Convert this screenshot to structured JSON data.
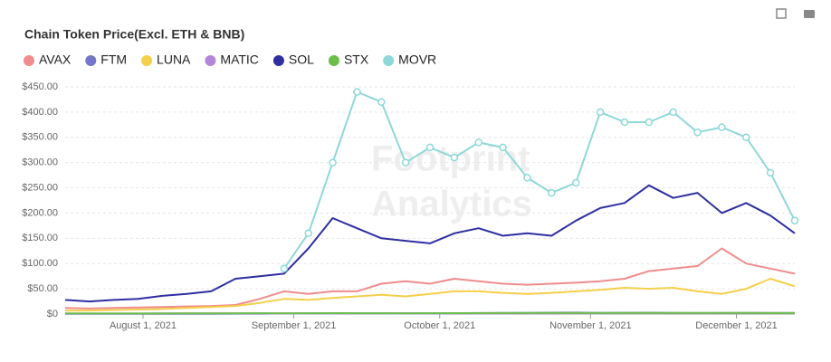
{
  "chart_data": {
    "type": "line",
    "title": "Chain Token Price(Excl. ETH & BNB)",
    "watermark": [
      "Footprint",
      "Analytics"
    ],
    "x": [
      "2021-07-16",
      "2021-07-21",
      "2021-07-26",
      "2021-07-31",
      "2021-08-05",
      "2021-08-10",
      "2021-08-15",
      "2021-08-20",
      "2021-08-25",
      "2021-08-30",
      "2021-09-04",
      "2021-09-09",
      "2021-09-14",
      "2021-09-19",
      "2021-09-24",
      "2021-09-29",
      "2021-10-04",
      "2021-10-09",
      "2021-10-14",
      "2021-10-19",
      "2021-10-24",
      "2021-10-29",
      "2021-11-03",
      "2021-11-08",
      "2021-11-13",
      "2021-11-18",
      "2021-11-23",
      "2021-11-28",
      "2021-12-03",
      "2021-12-08",
      "2021-12-13"
    ],
    "xlim": [
      "2021-07-16",
      "2021-12-13"
    ],
    "xticks": [
      {
        "value": "2021-08-01",
        "label": "August 1, 2021"
      },
      {
        "value": "2021-09-01",
        "label": "September 1, 2021"
      },
      {
        "value": "2021-10-01",
        "label": "October 1, 2021"
      },
      {
        "value": "2021-11-01",
        "label": "November 1, 2021"
      },
      {
        "value": "2021-12-01",
        "label": "December 1, 2021"
      }
    ],
    "ylim": [
      0,
      450
    ],
    "yticks": [
      {
        "value": 0,
        "label": "$0"
      },
      {
        "value": 50,
        "label": "$50.00"
      },
      {
        "value": 100,
        "label": "$100.00"
      },
      {
        "value": 150,
        "label": "$150.00"
      },
      {
        "value": 200,
        "label": "$200.00"
      },
      {
        "value": 250,
        "label": "$250.00"
      },
      {
        "value": 300,
        "label": "$300.00"
      },
      {
        "value": 350,
        "label": "$350.00"
      },
      {
        "value": 400,
        "label": "$400.00"
      },
      {
        "value": 450,
        "label": "$450.00"
      }
    ],
    "grid": true,
    "legend": "top-left",
    "series": [
      {
        "name": "AVAX",
        "color": "#ef8c8c",
        "values": [
          12,
          11,
          12,
          13,
          14,
          15,
          16,
          18,
          30,
          45,
          40,
          45,
          45,
          60,
          65,
          60,
          70,
          65,
          60,
          58,
          60,
          62,
          65,
          70,
          85,
          90,
          95,
          130,
          100,
          90,
          80
        ]
      },
      {
        "name": "FTM",
        "color": "#7477c8",
        "values": [
          0.3,
          0.3,
          0.3,
          0.3,
          0.4,
          0.5,
          0.6,
          0.7,
          0.8,
          1,
          1.5,
          1.7,
          1.4,
          1.3,
          1.2,
          1.3,
          1.6,
          1.8,
          2.2,
          2.3,
          2.6,
          2.8,
          2.4,
          2.5,
          2.6,
          2.2,
          1.9,
          1.8,
          2.0,
          1.9,
          1.8
        ]
      },
      {
        "name": "LUNA",
        "color": "#f4cf4a",
        "values": [
          7,
          7,
          8,
          9,
          10,
          12,
          14,
          16,
          22,
          30,
          28,
          32,
          35,
          38,
          35,
          40,
          45,
          45,
          42,
          40,
          42,
          45,
          48,
          52,
          50,
          52,
          45,
          40,
          50,
          70,
          55
        ]
      },
      {
        "name": "MATIC",
        "color": "#b287d8",
        "values": [
          1,
          1,
          1,
          1.1,
          1.2,
          1.3,
          1.4,
          1.5,
          1.4,
          1.3,
          1.5,
          1.4,
          1.3,
          1.2,
          1.2,
          1.3,
          1.5,
          1.6,
          1.5,
          1.4,
          1.5,
          1.6,
          1.7,
          1.8,
          1.9,
          1.8,
          1.7,
          2.2,
          2.3,
          2.4,
          2.3
        ]
      },
      {
        "name": "SOL",
        "color": "#2f2fa2",
        "values": [
          28,
          25,
          28,
          30,
          36,
          40,
          45,
          70,
          75,
          80,
          130,
          190,
          170,
          150,
          145,
          140,
          160,
          170,
          155,
          160,
          155,
          185,
          210,
          220,
          255,
          230,
          240,
          200,
          220,
          195,
          160
        ]
      },
      {
        "name": "STX",
        "color": "#6cbf4b",
        "values": [
          1,
          1,
          1,
          1,
          1.1,
          1.2,
          1.3,
          1.5,
          1.6,
          1.5,
          1.6,
          1.8,
          1.7,
          1.6,
          1.5,
          1.6,
          1.8,
          1.9,
          2.0,
          2.1,
          2.2,
          2.0,
          2.1,
          2.2,
          2.3,
          2.4,
          2.3,
          2.2,
          2.1,
          2.0,
          1.9
        ]
      },
      {
        "name": "MOVR",
        "color": "#8fd8d8",
        "markers": true,
        "values": [
          null,
          null,
          null,
          null,
          null,
          null,
          null,
          null,
          null,
          90,
          160,
          300,
          440,
          420,
          300,
          330,
          310,
          340,
          330,
          270,
          240,
          260,
          400,
          380,
          380,
          400,
          360,
          370,
          350,
          280,
          185
        ]
      }
    ]
  }
}
